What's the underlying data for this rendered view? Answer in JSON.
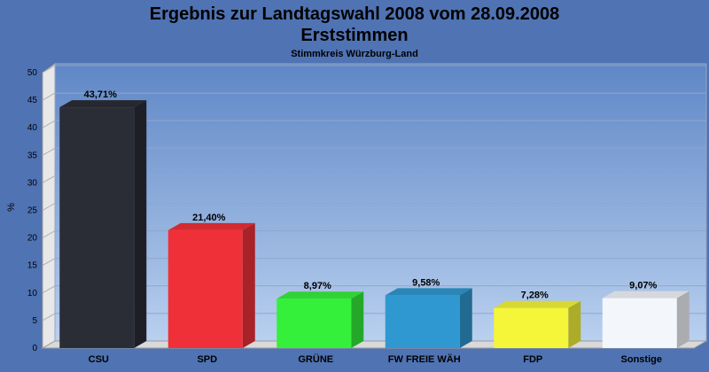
{
  "title": "Ergebnis zur Landtagswahl 2008 vom 28.09.2008",
  "subtitle": "Erststimmen",
  "subsubtitle": "Stimmkreis Würzburg-Land",
  "chart_data": {
    "type": "bar",
    "title": "Ergebnis zur Landtagswahl 2008 vom 28.09.2008",
    "subtitle": "Erststimmen",
    "ylabel": "%",
    "xlabel": "",
    "ylim": [
      0,
      50
    ],
    "yticks": [
      0,
      5,
      10,
      15,
      20,
      25,
      30,
      35,
      40,
      45,
      50
    ],
    "categories": [
      "CSU",
      "SPD",
      "GRÜNE",
      "FW FREIE WÄH",
      "FDP",
      "Sonstige"
    ],
    "values": [
      43.71,
      21.4,
      8.97,
      9.58,
      7.28,
      9.07
    ],
    "value_labels": [
      "43,71%",
      "21,40%",
      "8,97%",
      "9,58%",
      "7,28%",
      "9,07%"
    ],
    "colors": [
      "#2b2d36",
      "#f03038",
      "#35f03a",
      "#2f98d0",
      "#f5f53a",
      "#f3f6fb"
    ],
    "grid": true
  }
}
